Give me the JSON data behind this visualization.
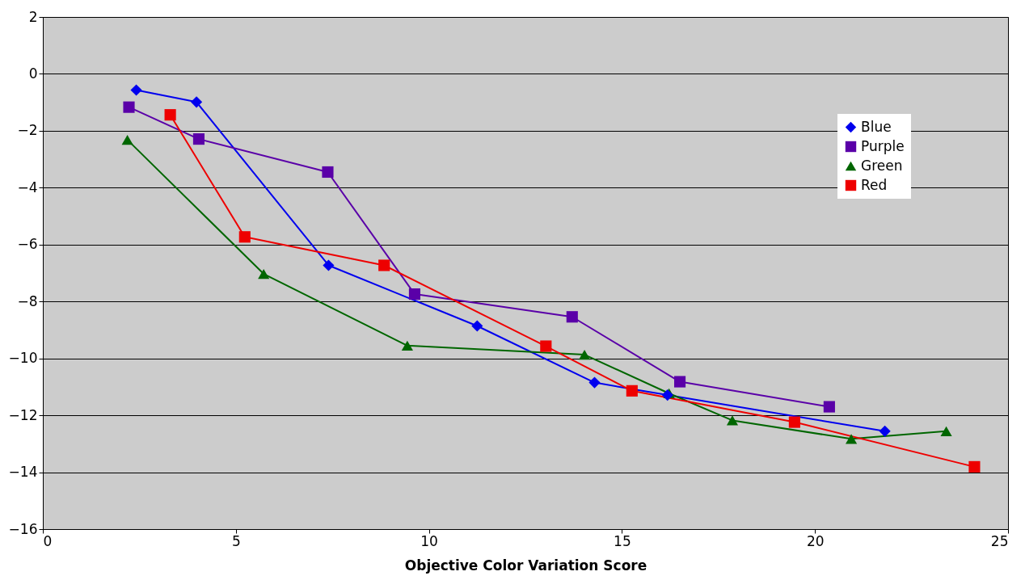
{
  "chart_data": {
    "type": "line",
    "xlabel": "Objective Color Variation Score",
    "xlim": [
      0,
      25
    ],
    "xticks": [
      0,
      5,
      10,
      15,
      20,
      25
    ],
    "ylim": [
      -16,
      2
    ],
    "yticks": [
      -16,
      -14,
      -12,
      -10,
      -8,
      -6,
      -4,
      -2,
      0,
      2
    ],
    "grid": "y",
    "legend": "top right",
    "series": [
      {
        "name": "Blue",
        "color": "#0000ee",
        "marker": "diamond",
        "x": [
          2.42,
          3.98,
          7.4,
          11.25,
          14.29,
          16.18,
          21.81
        ],
        "values": [
          -0.57,
          -0.99,
          -6.73,
          -8.86,
          -10.85,
          -11.29,
          -12.56
        ]
      },
      {
        "name": "Purple",
        "color": "#5a00a8",
        "marker": "square",
        "x": [
          2.23,
          4.04,
          7.38,
          9.63,
          13.71,
          16.5,
          20.37
        ],
        "values": [
          -1.17,
          -2.29,
          -3.45,
          -7.74,
          -8.54,
          -10.82,
          -11.7
        ]
      },
      {
        "name": "Green",
        "color": "#006600",
        "marker": "triangle",
        "x": [
          2.19,
          5.72,
          9.44,
          14.03,
          16.22,
          17.86,
          20.94,
          23.4
        ],
        "values": [
          -2.32,
          -7.03,
          -9.55,
          -9.87,
          -11.23,
          -12.18,
          -12.83,
          -12.56
        ]
      },
      {
        "name": "Red",
        "color": "#ee0000",
        "marker": "square",
        "x": [
          3.3,
          5.23,
          8.84,
          13.03,
          15.26,
          19.47,
          24.13
        ],
        "values": [
          -1.44,
          -5.73,
          -6.73,
          -9.57,
          -11.14,
          -12.24,
          -13.81
        ]
      }
    ]
  }
}
